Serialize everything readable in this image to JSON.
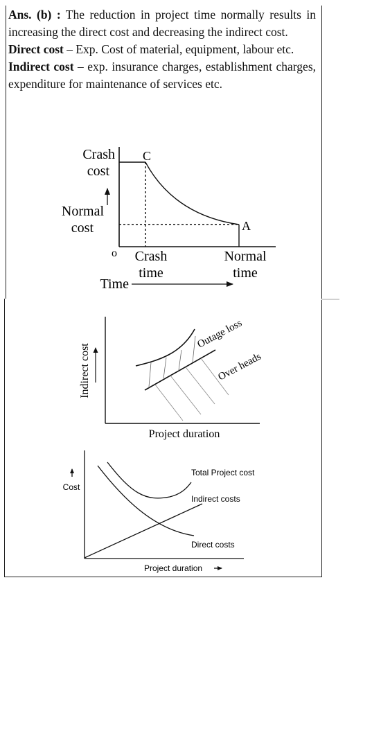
{
  "answer": {
    "label": "Ans. (b) :",
    "text": " The reduction in project time normally results in increasing the direct cost and decreasing the indirect cost."
  },
  "direct": {
    "term": "Direct cost",
    "text": " – Exp. Cost of material, equipment, labour etc."
  },
  "indirect": {
    "term": "Indirect cost",
    "text": " – exp. insurance charges, establishment charges, expenditure for maintenance of services etc."
  },
  "fig1": {
    "crash_cost_1": "Crash",
    "crash_cost_2": "cost",
    "normal_cost_1": "Normal",
    "normal_cost_2": "cost",
    "origin": "o",
    "point_c": "C",
    "point_a": "A",
    "crash_time_1": "Crash",
    "crash_time_2": "time",
    "normal_time_1": "Normal",
    "normal_time_2": "time",
    "time_axis": "Time"
  },
  "fig2": {
    "ylabel": "Indirect cost",
    "xlabel": "Project duration",
    "outage_loss": "Outage loss",
    "over_heads": "Over heads"
  },
  "fig3": {
    "ylabel": "Cost",
    "xlabel": "Project duration",
    "total_label": "Total Project cost",
    "indirect_label": "Indirect costs",
    "direct_label": "Direct costs"
  }
}
